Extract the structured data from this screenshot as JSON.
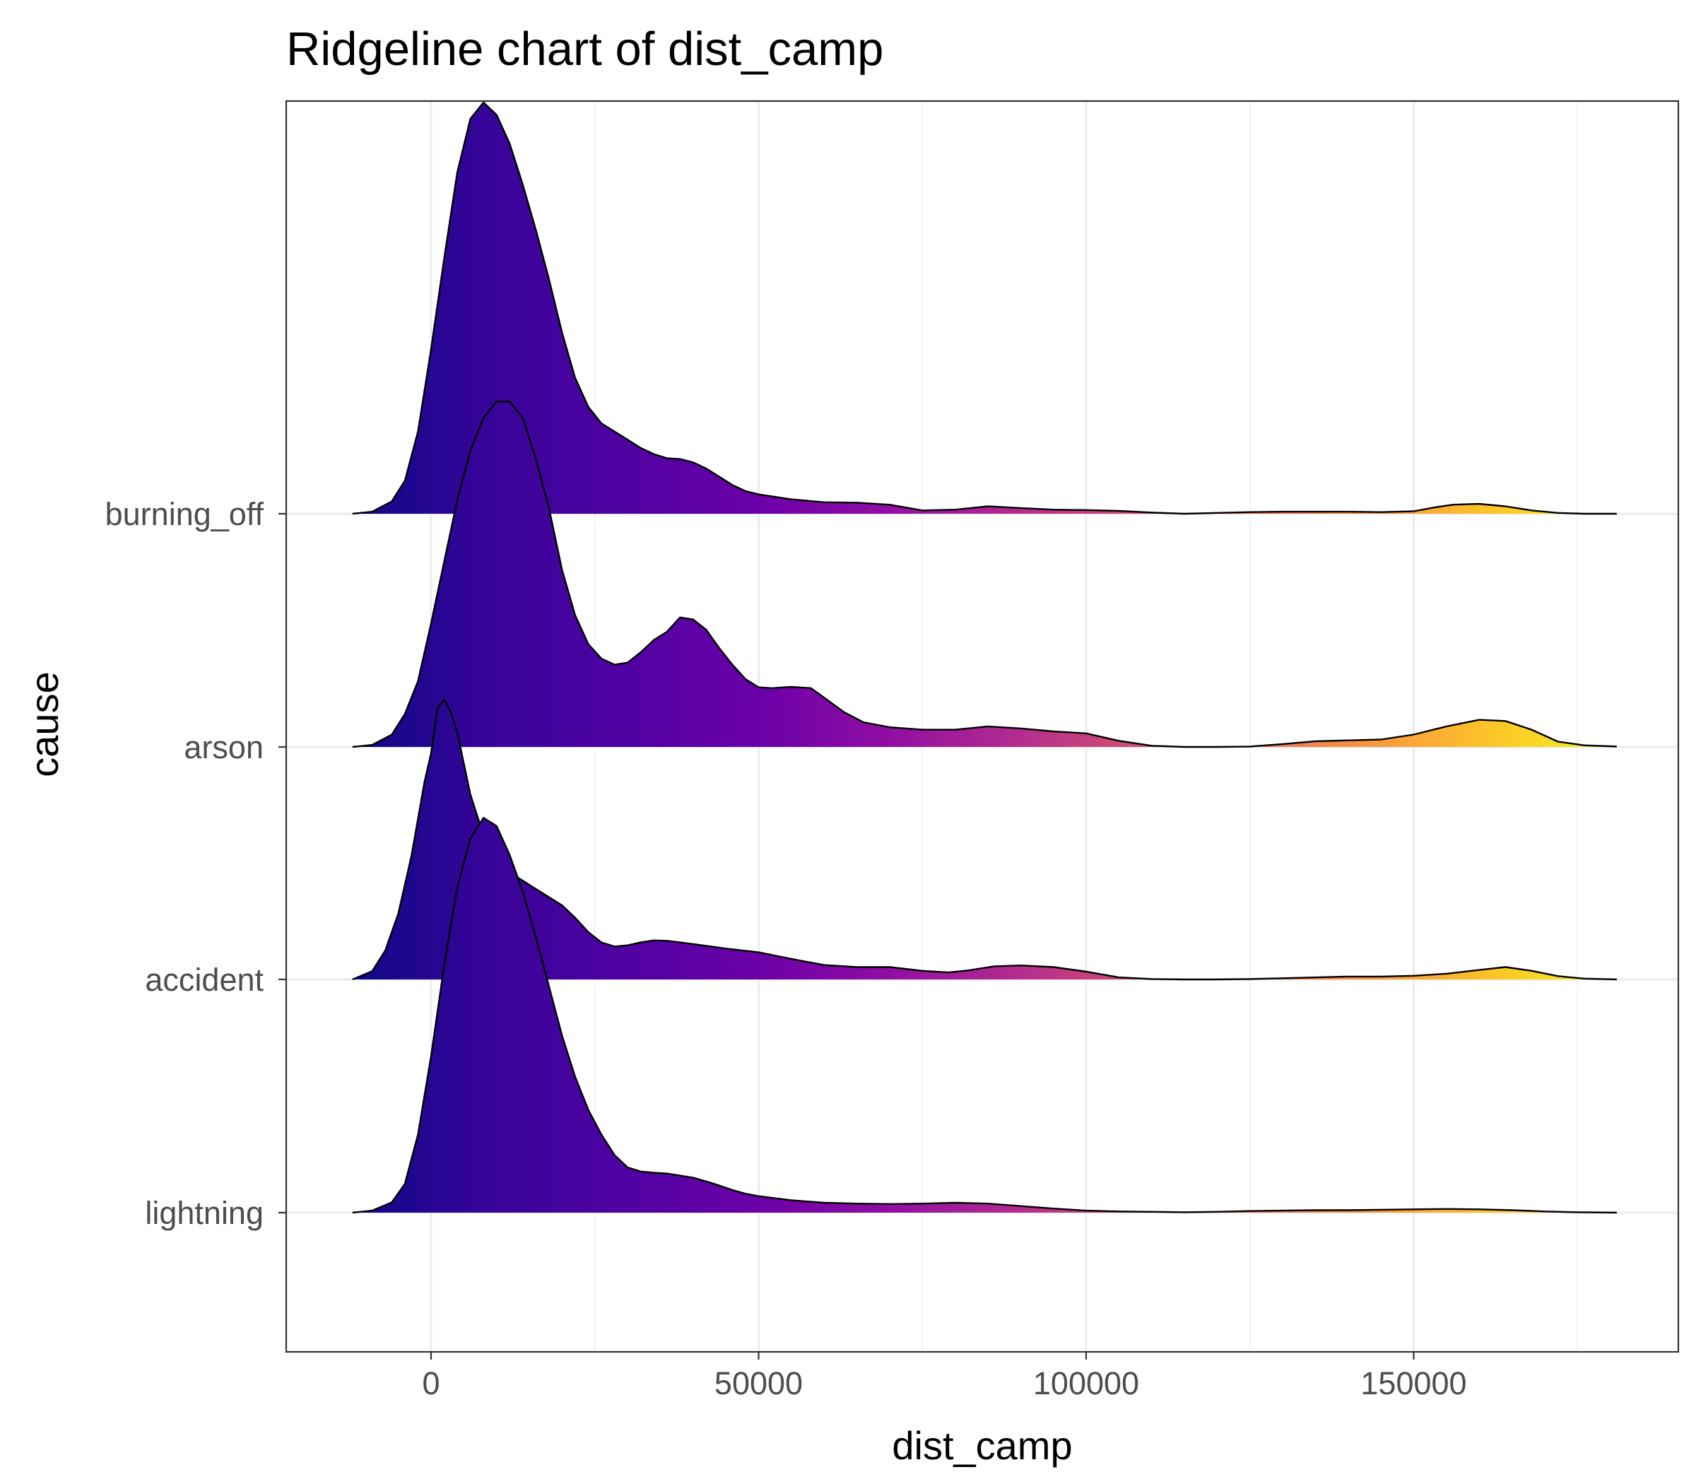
{
  "chart_data": {
    "type": "ridgeline",
    "title": "Ridgeline chart of dist_camp",
    "xlabel": "dist_camp",
    "ylabel": "cause",
    "xlim": [
      -22000,
      190000
    ],
    "x_ticks": [
      0,
      50000,
      100000,
      150000
    ],
    "x_tick_labels": [
      "0",
      "50000",
      "100000",
      "150000"
    ],
    "x_minor_ticks": [
      25000,
      75000,
      125000,
      175000
    ],
    "grid": true,
    "fill_scale": "plasma",
    "categories": [
      "burning_off",
      "arson",
      "accident",
      "lightning"
    ],
    "series": [
      {
        "name": "burning_off",
        "points": [
          [
            -12000,
            0
          ],
          [
            -9000,
            0.005
          ],
          [
            -6000,
            0.03
          ],
          [
            -4000,
            0.08
          ],
          [
            -2000,
            0.2
          ],
          [
            0,
            0.4
          ],
          [
            2000,
            0.62
          ],
          [
            4000,
            0.83
          ],
          [
            6000,
            0.96
          ],
          [
            8000,
            1.0
          ],
          [
            10000,
            0.97
          ],
          [
            12000,
            0.9
          ],
          [
            14000,
            0.8
          ],
          [
            16000,
            0.69
          ],
          [
            18000,
            0.57
          ],
          [
            20000,
            0.44
          ],
          [
            22000,
            0.33
          ],
          [
            24000,
            0.26
          ],
          [
            26000,
            0.22
          ],
          [
            28000,
            0.2
          ],
          [
            30000,
            0.18
          ],
          [
            32000,
            0.16
          ],
          [
            34000,
            0.145
          ],
          [
            36000,
            0.135
          ],
          [
            38000,
            0.133
          ],
          [
            40000,
            0.125
          ],
          [
            42000,
            0.11
          ],
          [
            44000,
            0.09
          ],
          [
            46000,
            0.07
          ],
          [
            48000,
            0.055
          ],
          [
            50000,
            0.047
          ],
          [
            55000,
            0.035
          ],
          [
            60000,
            0.028
          ],
          [
            65000,
            0.027
          ],
          [
            70000,
            0.022
          ],
          [
            75000,
            0.008
          ],
          [
            80000,
            0.01
          ],
          [
            85000,
            0.018
          ],
          [
            90000,
            0.014
          ],
          [
            95000,
            0.01
          ],
          [
            100000,
            0.009
          ],
          [
            105000,
            0.007
          ],
          [
            110000,
            0.003
          ],
          [
            115000,
            0.0
          ],
          [
            120000,
            0.002
          ],
          [
            125000,
            0.004
          ],
          [
            130000,
            0.005
          ],
          [
            135000,
            0.005
          ],
          [
            140000,
            0.005
          ],
          [
            145000,
            0.004
          ],
          [
            150000,
            0.006
          ],
          [
            153000,
            0.015
          ],
          [
            156000,
            0.022
          ],
          [
            160000,
            0.024
          ],
          [
            164000,
            0.018
          ],
          [
            168000,
            0.008
          ],
          [
            172000,
            0.002
          ],
          [
            176000,
            0.0
          ],
          [
            181000,
            0.0
          ]
        ]
      },
      {
        "name": "arson",
        "points": [
          [
            -12000,
            0
          ],
          [
            -9000,
            0.005
          ],
          [
            -6000,
            0.03
          ],
          [
            -4000,
            0.08
          ],
          [
            -2000,
            0.16
          ],
          [
            0,
            0.3
          ],
          [
            2000,
            0.45
          ],
          [
            4000,
            0.6
          ],
          [
            6000,
            0.72
          ],
          [
            8000,
            0.8
          ],
          [
            10000,
            0.84
          ],
          [
            12000,
            0.84
          ],
          [
            14000,
            0.8
          ],
          [
            16000,
            0.7
          ],
          [
            18000,
            0.58
          ],
          [
            20000,
            0.43
          ],
          [
            22000,
            0.32
          ],
          [
            24000,
            0.25
          ],
          [
            26000,
            0.215
          ],
          [
            28000,
            0.2
          ],
          [
            30000,
            0.205
          ],
          [
            32000,
            0.23
          ],
          [
            34000,
            0.26
          ],
          [
            36000,
            0.28
          ],
          [
            38000,
            0.315
          ],
          [
            40000,
            0.31
          ],
          [
            42000,
            0.285
          ],
          [
            44000,
            0.24
          ],
          [
            46000,
            0.2
          ],
          [
            48000,
            0.165
          ],
          [
            50000,
            0.145
          ],
          [
            52000,
            0.143
          ],
          [
            55000,
            0.146
          ],
          [
            58000,
            0.143
          ],
          [
            60000,
            0.12
          ],
          [
            63000,
            0.085
          ],
          [
            66000,
            0.06
          ],
          [
            70000,
            0.048
          ],
          [
            75000,
            0.042
          ],
          [
            80000,
            0.042
          ],
          [
            85000,
            0.05
          ],
          [
            90000,
            0.045
          ],
          [
            95000,
            0.038
          ],
          [
            100000,
            0.033
          ],
          [
            105000,
            0.015
          ],
          [
            110000,
            0.003
          ],
          [
            115000,
            0.0
          ],
          [
            120000,
            0.0
          ],
          [
            125000,
            0.001
          ],
          [
            130000,
            0.007
          ],
          [
            135000,
            0.014
          ],
          [
            140000,
            0.016
          ],
          [
            145000,
            0.018
          ],
          [
            150000,
            0.03
          ],
          [
            155000,
            0.05
          ],
          [
            160000,
            0.066
          ],
          [
            164000,
            0.063
          ],
          [
            168000,
            0.042
          ],
          [
            172000,
            0.013
          ],
          [
            176000,
            0.004
          ],
          [
            181000,
            0.001
          ]
        ]
      },
      {
        "name": "accident",
        "points": [
          [
            -12000,
            0
          ],
          [
            -9000,
            0.02
          ],
          [
            -7000,
            0.07
          ],
          [
            -5000,
            0.16
          ],
          [
            -3000,
            0.3
          ],
          [
            -1000,
            0.48
          ],
          [
            0,
            0.55
          ],
          [
            1000,
            0.66
          ],
          [
            2000,
            0.68
          ],
          [
            3000,
            0.65
          ],
          [
            4000,
            0.6
          ],
          [
            6000,
            0.45
          ],
          [
            8000,
            0.35
          ],
          [
            10000,
            0.3
          ],
          [
            12000,
            0.26
          ],
          [
            14000,
            0.24
          ],
          [
            16000,
            0.22
          ],
          [
            18000,
            0.2
          ],
          [
            20000,
            0.18
          ],
          [
            22000,
            0.15
          ],
          [
            24000,
            0.115
          ],
          [
            26000,
            0.09
          ],
          [
            28000,
            0.08
          ],
          [
            30000,
            0.083
          ],
          [
            32000,
            0.09
          ],
          [
            34000,
            0.095
          ],
          [
            36000,
            0.094
          ],
          [
            38000,
            0.09
          ],
          [
            40000,
            0.086
          ],
          [
            45000,
            0.075
          ],
          [
            50000,
            0.066
          ],
          [
            55000,
            0.05
          ],
          [
            60000,
            0.035
          ],
          [
            65000,
            0.03
          ],
          [
            70000,
            0.03
          ],
          [
            75000,
            0.021
          ],
          [
            79000,
            0.017
          ],
          [
            82000,
            0.022
          ],
          [
            86000,
            0.032
          ],
          [
            90000,
            0.034
          ],
          [
            95000,
            0.03
          ],
          [
            100000,
            0.019
          ],
          [
            105000,
            0.005
          ],
          [
            110000,
            0.001
          ],
          [
            115000,
            0.0
          ],
          [
            120000,
            0.0
          ],
          [
            125000,
            0.001
          ],
          [
            130000,
            0.003
          ],
          [
            135000,
            0.005
          ],
          [
            140000,
            0.007
          ],
          [
            145000,
            0.007
          ],
          [
            150000,
            0.009
          ],
          [
            155000,
            0.014
          ],
          [
            160000,
            0.023
          ],
          [
            164000,
            0.03
          ],
          [
            168000,
            0.021
          ],
          [
            172000,
            0.008
          ],
          [
            176000,
            0.002
          ],
          [
            181000,
            0.0
          ]
        ]
      },
      {
        "name": "lightning",
        "points": [
          [
            -12000,
            0
          ],
          [
            -9000,
            0.005
          ],
          [
            -6000,
            0.025
          ],
          [
            -4000,
            0.07
          ],
          [
            -2000,
            0.19
          ],
          [
            0,
            0.38
          ],
          [
            2000,
            0.6
          ],
          [
            4000,
            0.79
          ],
          [
            6000,
            0.91
          ],
          [
            8000,
            0.96
          ],
          [
            10000,
            0.94
          ],
          [
            12000,
            0.87
          ],
          [
            14000,
            0.78
          ],
          [
            16000,
            0.67
          ],
          [
            18000,
            0.55
          ],
          [
            20000,
            0.43
          ],
          [
            22000,
            0.33
          ],
          [
            24000,
            0.25
          ],
          [
            26000,
            0.19
          ],
          [
            28000,
            0.14
          ],
          [
            30000,
            0.11
          ],
          [
            32000,
            0.1
          ],
          [
            34000,
            0.097
          ],
          [
            36000,
            0.095
          ],
          [
            38000,
            0.09
          ],
          [
            40000,
            0.085
          ],
          [
            42000,
            0.076
          ],
          [
            44000,
            0.066
          ],
          [
            46000,
            0.055
          ],
          [
            48000,
            0.046
          ],
          [
            50000,
            0.04
          ],
          [
            55000,
            0.03
          ],
          [
            60000,
            0.024
          ],
          [
            65000,
            0.022
          ],
          [
            70000,
            0.021
          ],
          [
            75000,
            0.022
          ],
          [
            80000,
            0.024
          ],
          [
            85000,
            0.022
          ],
          [
            90000,
            0.016
          ],
          [
            95000,
            0.01
          ],
          [
            100000,
            0.005
          ],
          [
            105000,
            0.003
          ],
          [
            110000,
            0.002
          ],
          [
            115000,
            0.001
          ],
          [
            120000,
            0.002
          ],
          [
            125000,
            0.004
          ],
          [
            130000,
            0.005
          ],
          [
            135000,
            0.006
          ],
          [
            140000,
            0.006
          ],
          [
            145000,
            0.007
          ],
          [
            150000,
            0.008
          ],
          [
            155000,
            0.009
          ],
          [
            160000,
            0.008
          ],
          [
            165000,
            0.006
          ],
          [
            170000,
            0.003
          ],
          [
            175000,
            0.001
          ],
          [
            181000,
            0.0
          ]
        ]
      }
    ]
  }
}
